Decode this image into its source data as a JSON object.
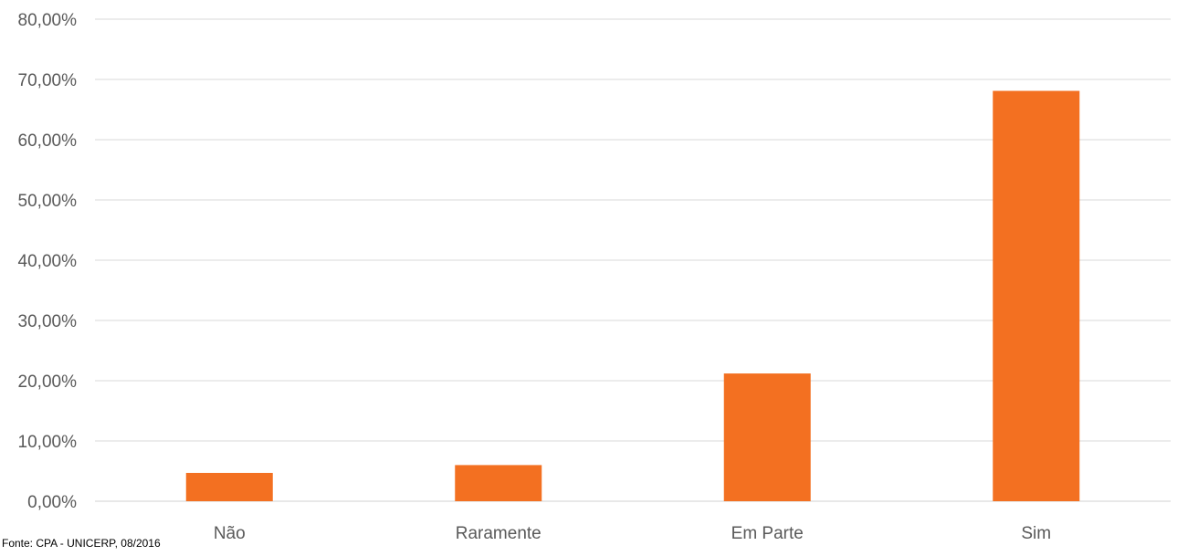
{
  "chart_data": {
    "type": "bar",
    "title": "",
    "xlabel": "",
    "ylabel": "",
    "categories": [
      "Não",
      "Raramente",
      "Em Parte",
      "Sim"
    ],
    "values": [
      4.7,
      6.0,
      21.2,
      68.1
    ],
    "ylim": [
      0,
      80
    ],
    "yticks": [
      0,
      10,
      20,
      30,
      40,
      50,
      60,
      70,
      80
    ],
    "ytick_labels": [
      "0,00%",
      "10,00%",
      "20,00%",
      "30,00%",
      "40,00%",
      "50,00%",
      "60,00%",
      "70,00%",
      "80,00%"
    ],
    "grid": true,
    "legend": "none",
    "colors": {
      "bar": "#F37021",
      "grid": "#D9D9D9",
      "axis": "#D9D9D9",
      "text": "#595959"
    }
  },
  "source_note": "Fonte: CPA - UNICERP, 08/2016"
}
